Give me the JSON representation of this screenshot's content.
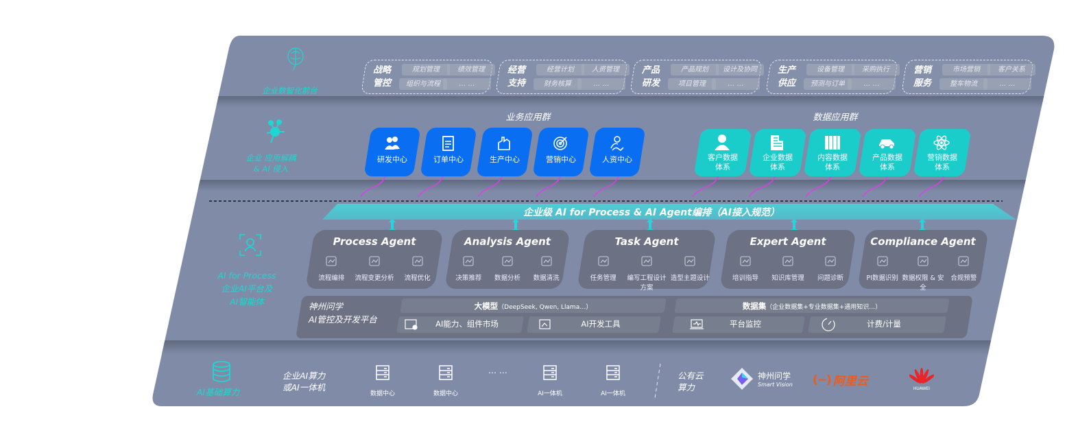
{
  "layers": {
    "frontend": {
      "label": "企业数智化前台",
      "icon": "brain-icon",
      "groups": [
        {
          "title": [
            "战略",
            "管控"
          ],
          "items": [
            "规划管理",
            "绩效管理",
            "组织与流程",
            "… …"
          ]
        },
        {
          "title": [
            "经营",
            "支持"
          ],
          "items": [
            "经营计划",
            "人资管理",
            "财务核算",
            "… …"
          ]
        },
        {
          "title": [
            "产品",
            "研发"
          ],
          "items": [
            "产品规划",
            "设计及协同",
            "项目管理",
            "… …"
          ]
        },
        {
          "title": [
            "生产",
            "供应"
          ],
          "items": [
            "设备管理",
            "采购执行",
            "预测与订单",
            "… …"
          ]
        },
        {
          "title": [
            "营销",
            "服务"
          ],
          "items": [
            "市场营销",
            "客户关系",
            "整车物流",
            "… …"
          ]
        }
      ]
    },
    "apps": {
      "label": [
        "企业 应用解耦",
        "& AI 侵入"
      ],
      "icon": "network-node-icon",
      "business_title": "业务应用群",
      "business": [
        {
          "label": "研发中心",
          "icon": "team-icon"
        },
        {
          "label": "订单中心",
          "icon": "clipboard-icon"
        },
        {
          "label": "生产中心",
          "icon": "factory-icon"
        },
        {
          "label": "营销中心",
          "icon": "target-icon"
        },
        {
          "label": "人资中心",
          "icon": "person-icon"
        }
      ],
      "data_title": "数据应用群",
      "data": [
        {
          "label": [
            "客户数据",
            "体系"
          ],
          "icon": "user-icon"
        },
        {
          "label": [
            "企业数据",
            "体系"
          ],
          "icon": "building-icon"
        },
        {
          "label": [
            "内容数据",
            "体系"
          ],
          "icon": "books-icon"
        },
        {
          "label": [
            "产品数据",
            "体系"
          ],
          "icon": "car-icon"
        },
        {
          "label": [
            "营销数据",
            "体系"
          ],
          "icon": "atom-icon"
        }
      ]
    },
    "orchestration": {
      "banner": "企业级 AI for Process & AI Agent编排（AI接入规范）"
    },
    "ai_platform": {
      "label": [
        "AI for Process",
        "企业AI平台及",
        "AI智能体"
      ],
      "icon": "face-scan-icon",
      "agents": [
        {
          "title": "Process Agent",
          "items": [
            "流程编排",
            "流程变更分析",
            "流程优化"
          ]
        },
        {
          "title": "Analysis Agent",
          "items": [
            "决策推荐",
            "数据分析",
            "数据清洗"
          ]
        },
        {
          "title": "Task Agent",
          "items": [
            "任务管理",
            "编写工程设计方案",
            "造型主题设计"
          ]
        },
        {
          "title": "Expert Agent",
          "items": [
            "培训指导",
            "知识库管理",
            "问题诊断"
          ]
        },
        {
          "title": "Compliance Agent",
          "items": [
            "PI数据识别",
            "数据权限 & 安全",
            "合规预警"
          ]
        }
      ],
      "platform": {
        "name": [
          "神州问学",
          "AI管控及开发平台"
        ],
        "model": "大模型",
        "model_note": "（DeepSeek, Qwen, Llama…）",
        "dataset": "数据集",
        "dataset_note": "（企业数据集+专业数据集+通用知识…）",
        "tools": [
          "AI能力、组件市场",
          "AI开发工具",
          "平台监控",
          "计费/计量"
        ]
      }
    },
    "compute": {
      "label": "AI基础算力",
      "icon": "database-icon",
      "private_label": [
        "企业AI算力",
        "或AI一体机"
      ],
      "servers": [
        "数据中心",
        "数据中心",
        "AI一体机",
        "AI一体机"
      ],
      "ellipsis": "… …",
      "public_label": [
        "公有云",
        "算力"
      ],
      "providers": [
        {
          "name": "神州问学",
          "sub": "Smart Vision"
        },
        {
          "name": "阿里云",
          "color": "#f05a1a"
        },
        {
          "name": "HUAWEI",
          "color": "#e8262a"
        }
      ]
    }
  },
  "colors": {
    "panel": "#808ca7",
    "blue": "#0a6ef2",
    "teal": "#1bcdca",
    "accent": "#1fd6d2",
    "arrow": "#d940e8"
  }
}
